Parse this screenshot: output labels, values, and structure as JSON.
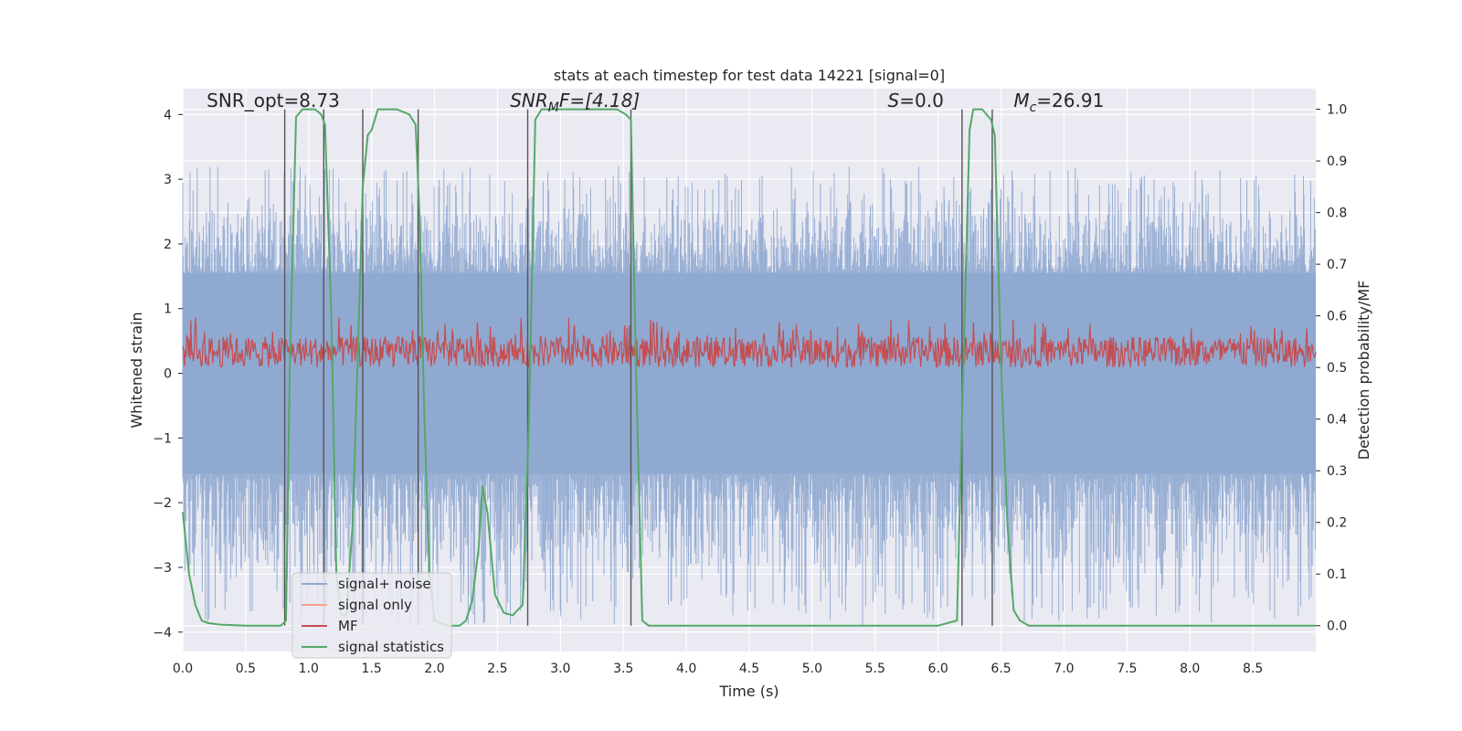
{
  "chart_data": {
    "type": "line",
    "title": "stats at each timestep for test data 14221 [signal=0]",
    "xlabel": "Time (s)",
    "ylabel": "Whitened strain",
    "y2label": "Detection probability/MF",
    "xlim": [
      0.0,
      9.0
    ],
    "ylim": [
      -4.3,
      4.4
    ],
    "y2lim": [
      -0.05,
      1.04
    ],
    "xticks": [
      0.0,
      0.5,
      1.0,
      1.5,
      2.0,
      2.5,
      3.0,
      3.5,
      4.0,
      4.5,
      5.0,
      5.5,
      6.0,
      6.5,
      7.0,
      7.5,
      8.0,
      8.5
    ],
    "xtick_labels": [
      "0.0",
      "0.5",
      "1.0",
      "1.5",
      "2.0",
      "2.5",
      "3.0",
      "3.5",
      "4.0",
      "4.5",
      "5.0",
      "5.5",
      "6.0",
      "6.5",
      "7.0",
      "7.5",
      "8.0",
      "8.5"
    ],
    "yticks": [
      4,
      3,
      2,
      1,
      0,
      -1,
      -2,
      -3,
      -4
    ],
    "ytick_labels": [
      "4",
      "3",
      "2",
      "1",
      "0",
      "−1",
      "−2",
      "−3",
      "−4"
    ],
    "y2ticks": [
      1.0,
      0.9,
      0.8,
      0.7,
      0.6,
      0.5,
      0.4,
      0.3,
      0.2,
      0.1,
      0.0
    ],
    "y2tick_labels": [
      "1.0",
      "0.9",
      "0.8",
      "0.7",
      "0.6",
      "0.5",
      "0.4",
      "0.3",
      "0.2",
      "0.1",
      "0.0"
    ],
    "grid": true,
    "legend_position": "lower-left",
    "annotations": [
      {
        "kind": "plain",
        "text": "SNR_opt=8.73",
        "x": 0.19,
        "y": 4.12
      },
      {
        "kind": "snrmf",
        "main": "SNR",
        "sub": "M",
        "rest": "F=[4.18]",
        "x": 2.6,
        "y": 4.12
      },
      {
        "kind": "italic",
        "italic": "S",
        "rest": "=0.0",
        "x": 5.6,
        "y": 4.12
      },
      {
        "kind": "mc",
        "main": "M",
        "sub": "c",
        "rest": "=26.91",
        "x": 6.6,
        "y": 4.12
      }
    ],
    "series": [
      {
        "name": "signal+ noise",
        "color": "#8fa8d0",
        "band_center": 0.0,
        "band_halfwidth": 1.55,
        "spike_max": 3.2,
        "spike_min": -3.9
      },
      {
        "name": "signal only",
        "color": "#f2a58f",
        "values": []
      },
      {
        "name": "MF",
        "color": "#c44e52",
        "axis": "right",
        "baseline": 0.5,
        "typical_max": 0.56,
        "spike_max": 0.6
      },
      {
        "name": "signal statistics",
        "color": "#55a868",
        "axis": "right",
        "x": [
          0.0,
          0.05,
          0.1,
          0.15,
          0.2,
          0.3,
          0.5,
          0.7,
          0.78,
          0.82,
          0.85,
          0.9,
          0.95,
          1.0,
          1.05,
          1.1,
          1.13,
          1.18,
          1.22,
          1.26,
          1.3,
          1.35,
          1.4,
          1.43,
          1.47,
          1.5,
          1.55,
          1.6,
          1.7,
          1.8,
          1.85,
          1.88,
          1.92,
          1.96,
          2.0,
          2.1,
          2.2,
          2.25,
          2.3,
          2.35,
          2.38,
          2.42,
          2.48,
          2.55,
          2.62,
          2.7,
          2.75,
          2.8,
          2.85,
          2.9,
          3.0,
          3.3,
          3.45,
          3.52,
          3.56,
          3.6,
          3.65,
          3.7,
          3.8,
          5.0,
          6.0,
          6.15,
          6.2,
          6.25,
          6.28,
          6.35,
          6.42,
          6.45,
          6.5,
          6.55,
          6.6,
          6.65,
          6.72,
          7.0,
          8.0,
          9.0
        ],
        "values": [
          0.22,
          0.1,
          0.04,
          0.01,
          0.005,
          0.002,
          0.0,
          0.0,
          0.0,
          0.01,
          0.5,
          0.985,
          1.0,
          1.0,
          1.0,
          0.99,
          0.97,
          0.6,
          0.1,
          0.02,
          0.02,
          0.2,
          0.6,
          0.85,
          0.95,
          0.96,
          1.0,
          1.0,
          1.0,
          0.99,
          0.97,
          0.8,
          0.4,
          0.1,
          0.01,
          0.0,
          0.0,
          0.01,
          0.05,
          0.15,
          0.27,
          0.22,
          0.06,
          0.025,
          0.02,
          0.04,
          0.4,
          0.98,
          1.0,
          1.0,
          1.0,
          1.0,
          1.0,
          0.99,
          0.98,
          0.5,
          0.01,
          0.0,
          0.0,
          0.0,
          0.0,
          0.01,
          0.5,
          0.96,
          1.0,
          1.0,
          0.98,
          0.95,
          0.5,
          0.2,
          0.03,
          0.01,
          0.0,
          0.0,
          0.0,
          0.0
        ]
      }
    ],
    "vertical_lines": [
      0.81,
      1.12,
      1.43,
      1.87,
      2.74,
      3.56,
      6.19,
      6.43
    ]
  }
}
